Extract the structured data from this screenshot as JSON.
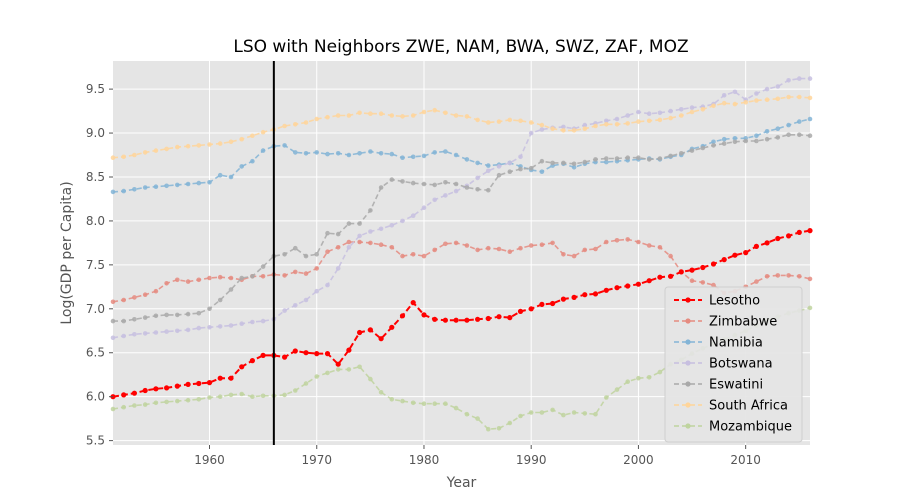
{
  "chart_data": {
    "type": "line",
    "title": "LSO with Neighbors ZWE, NAM, BWA, SWZ, ZAF, MOZ",
    "xlabel": "Year",
    "ylabel": "Log(GDP per Capita)",
    "xlim": [
      1951,
      2016
    ],
    "ylim": [
      5.45,
      9.82
    ],
    "xticks": [
      1960,
      1970,
      1980,
      1990,
      2000,
      2010
    ],
    "yticks": [
      5.5,
      6.0,
      6.5,
      7.0,
      7.5,
      8.0,
      8.5,
      9.0,
      9.5
    ],
    "ytick_labels": [
      "5.5",
      "6.0",
      "6.5",
      "7.0",
      "7.5",
      "8.0",
      "8.5",
      "9.0",
      "9.5"
    ],
    "grid": true,
    "legend_position": "lower-right",
    "vline_x": 1966,
    "x": [
      1951,
      1952,
      1953,
      1954,
      1955,
      1956,
      1957,
      1958,
      1959,
      1960,
      1961,
      1962,
      1963,
      1964,
      1965,
      1966,
      1967,
      1968,
      1969,
      1970,
      1971,
      1972,
      1973,
      1974,
      1975,
      1976,
      1977,
      1978,
      1979,
      1980,
      1981,
      1982,
      1983,
      1984,
      1985,
      1986,
      1987,
      1988,
      1989,
      1990,
      1991,
      1992,
      1993,
      1994,
      1995,
      1996,
      1997,
      1998,
      1999,
      2000,
      2001,
      2002,
      2003,
      2004,
      2005,
      2006,
      2007,
      2008,
      2009,
      2010,
      2011,
      2012,
      2013,
      2014,
      2015,
      2016
    ],
    "series": [
      {
        "name": "Lesotho",
        "color": "#ff0000",
        "highlight": true,
        "values": [
          6.0,
          6.02,
          6.04,
          6.07,
          6.09,
          6.1,
          6.12,
          6.14,
          6.15,
          6.16,
          6.21,
          6.21,
          6.34,
          6.41,
          6.47,
          6.47,
          6.45,
          6.52,
          6.5,
          6.49,
          6.49,
          6.37,
          6.53,
          6.73,
          6.76,
          6.66,
          6.79,
          6.92,
          7.07,
          6.93,
          6.88,
          6.87,
          6.87,
          6.87,
          6.88,
          6.89,
          6.91,
          6.9,
          6.97,
          7.0,
          7.05,
          7.06,
          7.11,
          7.13,
          7.16,
          7.17,
          7.21,
          7.24,
          7.26,
          7.28,
          7.32,
          7.36,
          7.37,
          7.42,
          7.44,
          7.47,
          7.51,
          7.56,
          7.61,
          7.64,
          7.71,
          7.75,
          7.8,
          7.83,
          7.87,
          7.89
        ]
      },
      {
        "name": "Zimbabwe",
        "color": "#e58b80",
        "highlight": false,
        "values": [
          7.08,
          7.1,
          7.13,
          7.16,
          7.2,
          7.29,
          7.33,
          7.31,
          7.33,
          7.35,
          7.36,
          7.35,
          7.33,
          7.37,
          7.37,
          7.39,
          7.38,
          7.42,
          7.4,
          7.46,
          7.65,
          7.7,
          7.76,
          7.76,
          7.75,
          7.73,
          7.7,
          7.6,
          7.62,
          7.6,
          7.67,
          7.74,
          7.75,
          7.72,
          7.67,
          7.69,
          7.68,
          7.65,
          7.69,
          7.72,
          7.73,
          7.75,
          7.62,
          7.6,
          7.67,
          7.68,
          7.76,
          7.78,
          7.79,
          7.76,
          7.72,
          7.7,
          7.6,
          7.42,
          7.32,
          7.3,
          7.27,
          7.18,
          7.2,
          7.25,
          7.31,
          7.37,
          7.38,
          7.38,
          7.37,
          7.34
        ]
      },
      {
        "name": "Namibia",
        "color": "#83b4d6",
        "highlight": false,
        "values": [
          8.33,
          8.34,
          8.36,
          8.38,
          8.39,
          8.4,
          8.41,
          8.42,
          8.43,
          8.44,
          8.52,
          8.5,
          8.62,
          8.68,
          8.8,
          8.85,
          8.86,
          8.78,
          8.77,
          8.78,
          8.76,
          8.77,
          8.75,
          8.77,
          8.79,
          8.77,
          8.76,
          8.72,
          8.73,
          8.74,
          8.78,
          8.79,
          8.75,
          8.7,
          8.66,
          8.63,
          8.64,
          8.66,
          8.62,
          8.58,
          8.56,
          8.63,
          8.65,
          8.61,
          8.65,
          8.67,
          8.67,
          8.68,
          8.69,
          8.7,
          8.71,
          8.7,
          8.73,
          8.75,
          8.82,
          8.85,
          8.9,
          8.93,
          8.94,
          8.94,
          8.97,
          9.02,
          9.05,
          9.09,
          9.13,
          9.16
        ]
      },
      {
        "name": "Botswana",
        "color": "#c7bfe0",
        "highlight": false,
        "values": [
          6.67,
          6.69,
          6.71,
          6.72,
          6.73,
          6.74,
          6.75,
          6.76,
          6.78,
          6.79,
          6.8,
          6.81,
          6.83,
          6.85,
          6.86,
          6.88,
          6.98,
          7.04,
          7.1,
          7.2,
          7.27,
          7.46,
          7.7,
          7.83,
          7.88,
          7.91,
          7.95,
          8.0,
          8.06,
          8.15,
          8.24,
          8.29,
          8.34,
          8.4,
          8.49,
          8.57,
          8.62,
          8.66,
          8.73,
          9.0,
          9.04,
          9.06,
          9.07,
          9.05,
          9.09,
          9.11,
          9.14,
          9.16,
          9.2,
          9.24,
          9.22,
          9.23,
          9.25,
          9.27,
          9.29,
          9.3,
          9.33,
          9.43,
          9.47,
          9.38,
          9.45,
          9.5,
          9.53,
          9.6,
          9.62,
          9.62
        ]
      },
      {
        "name": "Eswatini",
        "color": "#a9a9a9",
        "highlight": false,
        "values": [
          6.86,
          6.86,
          6.88,
          6.9,
          6.92,
          6.93,
          6.93,
          6.94,
          6.95,
          7.0,
          7.1,
          7.22,
          7.35,
          7.37,
          7.48,
          7.6,
          7.62,
          7.69,
          7.6,
          7.62,
          7.86,
          7.85,
          7.97,
          7.97,
          8.12,
          8.38,
          8.47,
          8.45,
          8.43,
          8.42,
          8.41,
          8.44,
          8.42,
          8.38,
          8.36,
          8.35,
          8.52,
          8.56,
          8.59,
          8.6,
          8.68,
          8.66,
          8.66,
          8.65,
          8.67,
          8.7,
          8.71,
          8.71,
          8.72,
          8.72,
          8.7,
          8.71,
          8.74,
          8.77,
          8.8,
          8.83,
          8.86,
          8.88,
          8.9,
          8.91,
          8.91,
          8.93,
          8.95,
          8.98,
          8.98,
          8.97
        ]
      },
      {
        "name": "South Africa",
        "color": "#ffd59a",
        "highlight": false,
        "values": [
          8.72,
          8.73,
          8.75,
          8.78,
          8.8,
          8.82,
          8.84,
          8.85,
          8.86,
          8.87,
          8.88,
          8.9,
          8.93,
          8.97,
          9.01,
          9.04,
          9.08,
          9.1,
          9.12,
          9.16,
          9.18,
          9.2,
          9.2,
          9.23,
          9.22,
          9.22,
          9.2,
          9.19,
          9.2,
          9.24,
          9.26,
          9.23,
          9.2,
          9.19,
          9.15,
          9.12,
          9.13,
          9.15,
          9.14,
          9.12,
          9.09,
          9.05,
          9.03,
          9.03,
          9.05,
          9.08,
          9.1,
          9.1,
          9.11,
          9.13,
          9.14,
          9.15,
          9.17,
          9.2,
          9.24,
          9.27,
          9.31,
          9.34,
          9.33,
          9.35,
          9.37,
          9.38,
          9.39,
          9.41,
          9.41,
          9.4
        ]
      },
      {
        "name": "Mozambique",
        "color": "#bfd49f",
        "highlight": false,
        "values": [
          5.86,
          5.88,
          5.9,
          5.91,
          5.93,
          5.94,
          5.95,
          5.96,
          5.97,
          5.99,
          6.0,
          6.02,
          6.03,
          6.0,
          6.01,
          6.01,
          6.02,
          6.07,
          6.15,
          6.23,
          6.27,
          6.31,
          6.31,
          6.34,
          6.2,
          6.05,
          5.97,
          5.95,
          5.93,
          5.92,
          5.92,
          5.92,
          5.87,
          5.8,
          5.75,
          5.63,
          5.64,
          5.7,
          5.78,
          5.82,
          5.82,
          5.85,
          5.79,
          5.82,
          5.81,
          5.8,
          5.99,
          6.08,
          6.17,
          6.21,
          6.22,
          6.28,
          6.37,
          6.42,
          6.49,
          6.55,
          6.6,
          6.65,
          6.7,
          6.75,
          6.81,
          6.87,
          6.91,
          6.95,
          6.98,
          7.01
        ]
      }
    ]
  }
}
